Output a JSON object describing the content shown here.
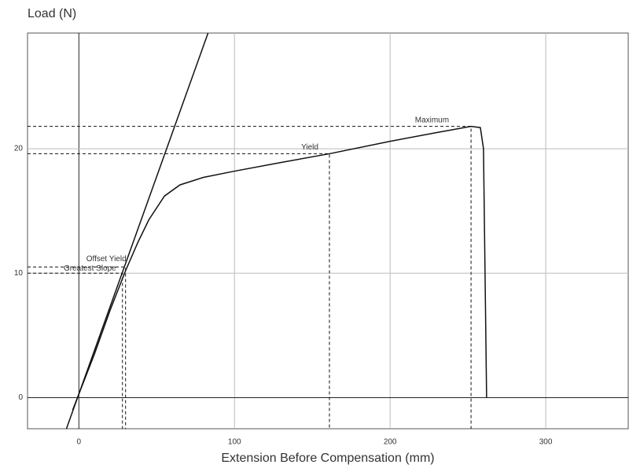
{
  "chart_data": {
    "type": "line",
    "y_label": "Load (N)",
    "x_label": "Extension Before Compensation (mm)",
    "xlim": [
      -33,
      353
    ],
    "ylim": [
      -2.5,
      29.3
    ],
    "xticks": [
      0,
      100,
      200,
      300
    ],
    "yticks": [
      0,
      10,
      20
    ],
    "grid": true,
    "series": [
      {
        "color": "#111111",
        "x": [
          -4,
          10,
          20,
          30,
          38,
          45,
          55,
          65,
          80,
          100,
          130,
          161,
          200,
          230,
          252,
          258,
          260,
          261,
          262
        ],
        "values": [
          -1,
          3.5,
          7,
          10.2,
          12.5,
          14.3,
          16.2,
          17.1,
          17.7,
          18.2,
          18.9,
          19.6,
          20.6,
          21.3,
          21.8,
          21.7,
          20,
          10,
          0
        ]
      },
      {
        "color": "#111111",
        "x": [
          -8,
          83
        ],
        "values": [
          -2.5,
          29.3
        ]
      }
    ],
    "annotations": [
      {
        "text": "Maximum",
        "x": 252,
        "y": 21.8
      },
      {
        "text": "Yield",
        "x": 161,
        "y": 19.6
      },
      {
        "text": "Offset Yield",
        "x": 30,
        "y": 10.5
      },
      {
        "text": "Greatest Slope",
        "x": 28,
        "y": 10
      }
    ]
  }
}
